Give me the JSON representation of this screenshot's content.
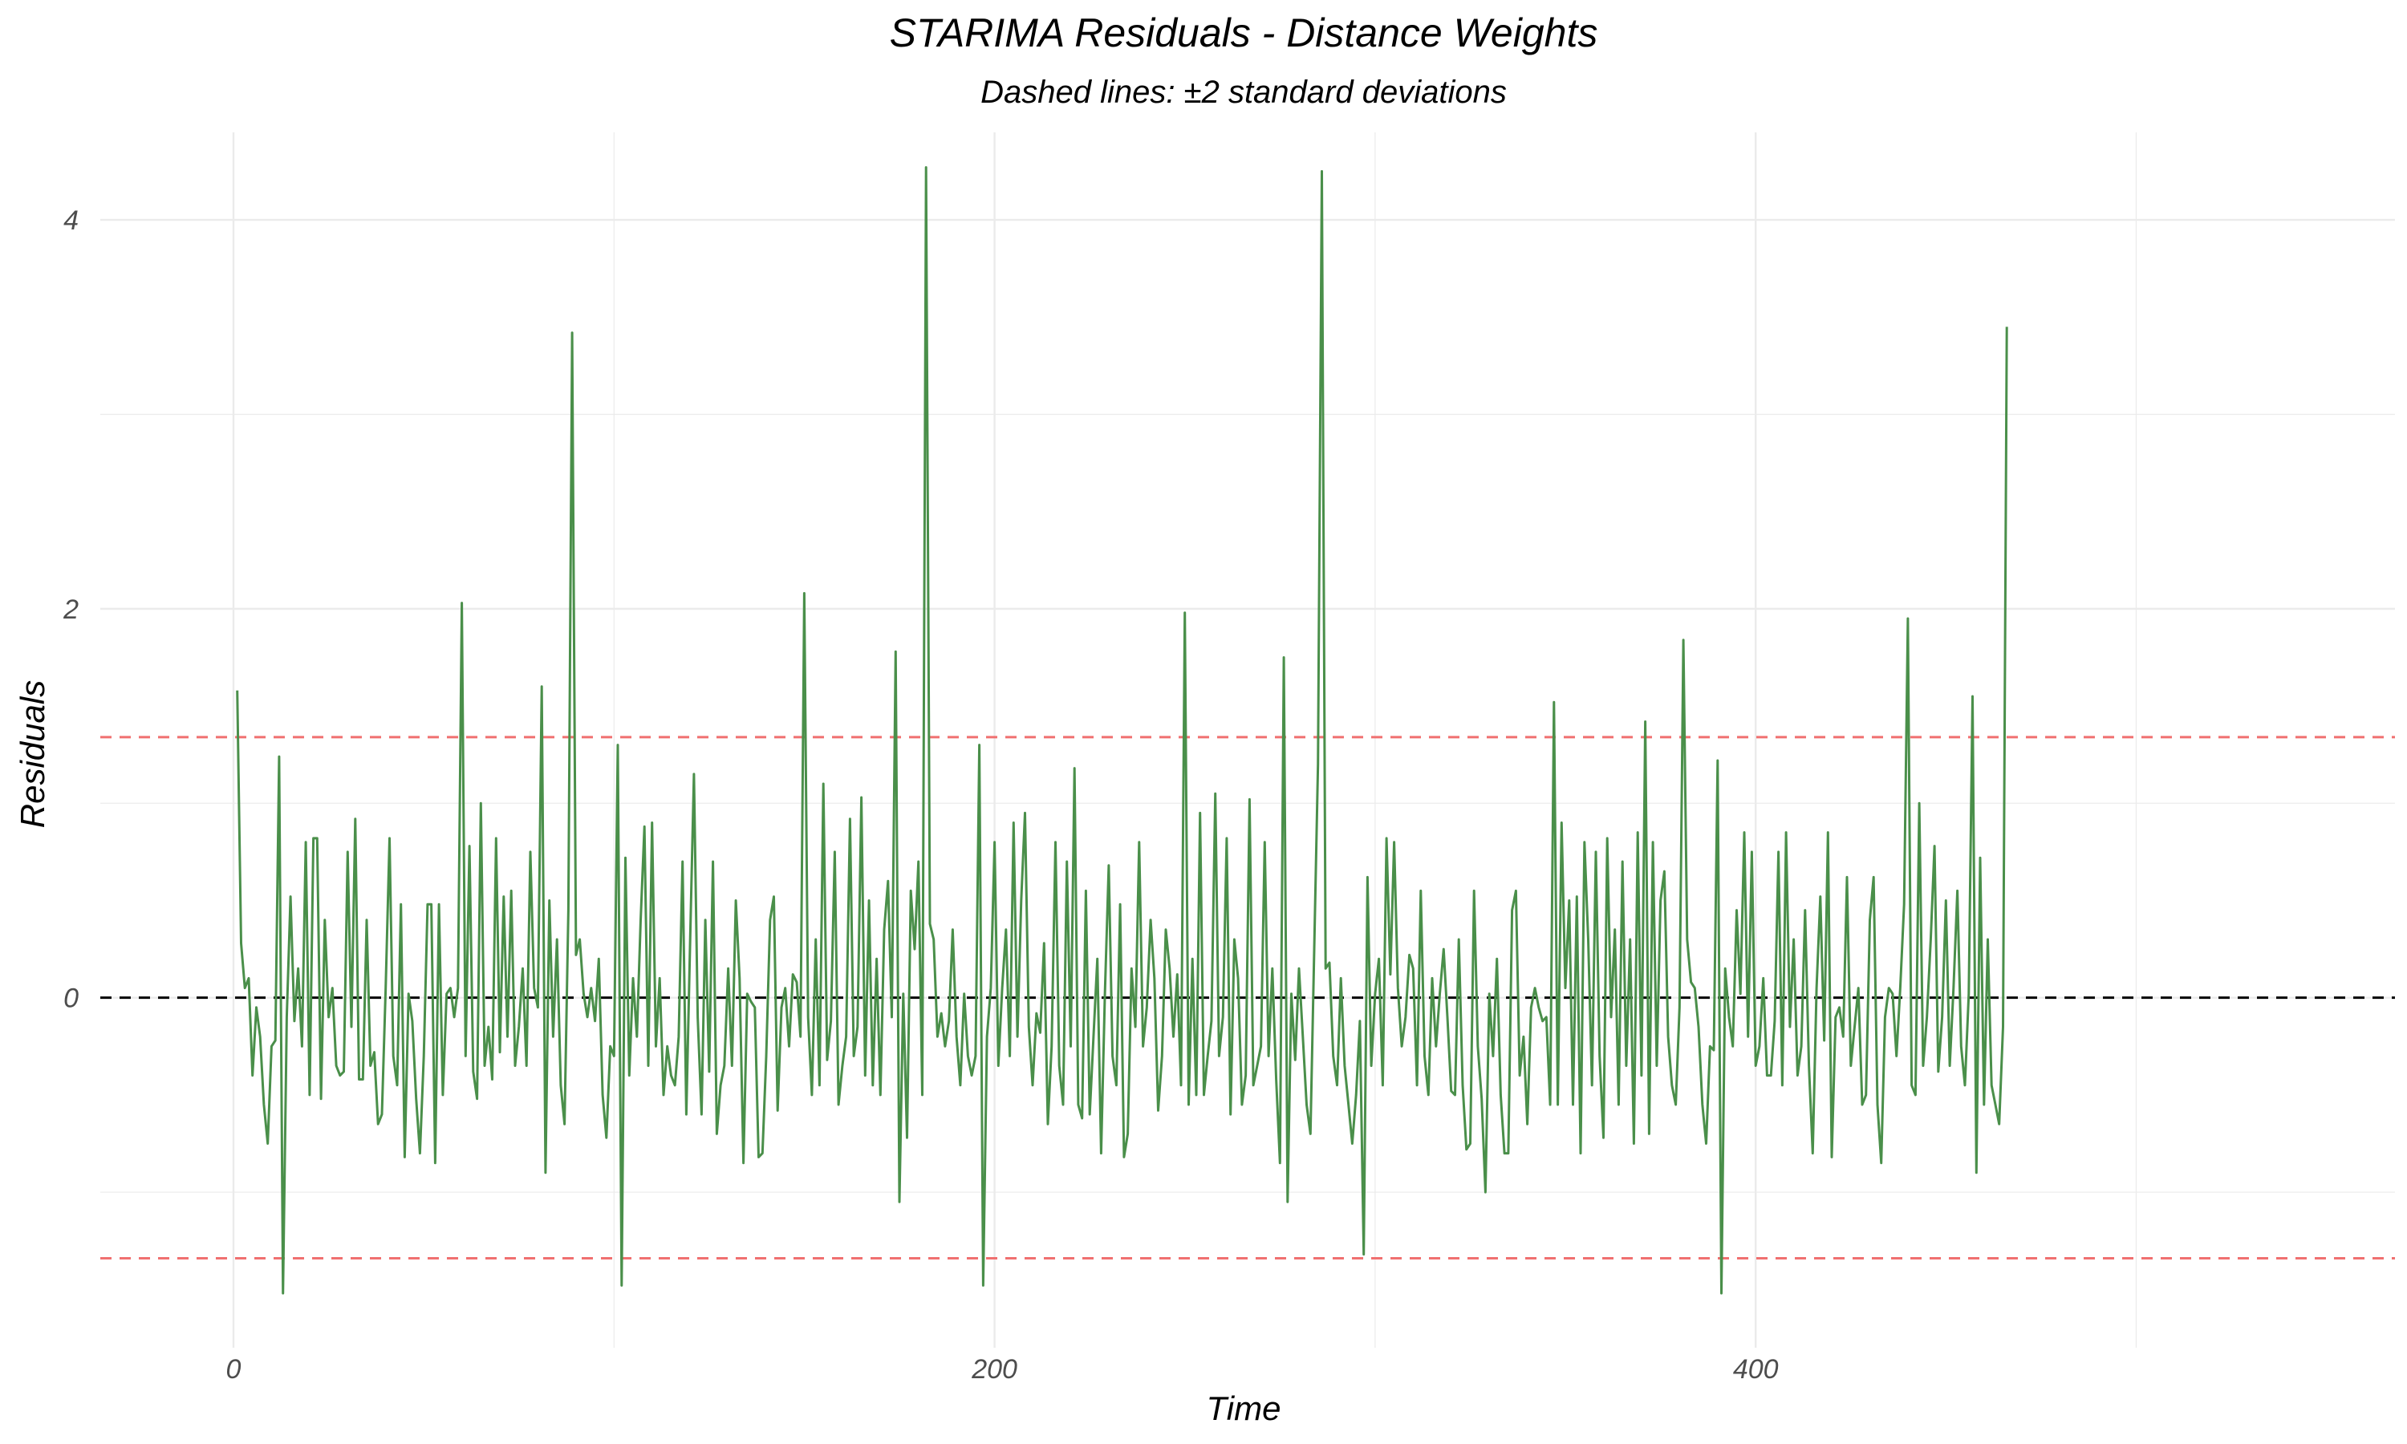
{
  "chart_data": {
    "type": "line",
    "title": "STARIMA Residuals - Distance Weights",
    "subtitle": "Dashed lines: ±2 standard deviations",
    "xlabel": "Time",
    "ylabel": "Residuals",
    "xlim": [
      -35,
      568
    ],
    "ylim": [
      -1.8,
      4.45
    ],
    "x_ticks": [
      0,
      200,
      400
    ],
    "y_ticks": [
      0,
      2,
      4
    ],
    "grid": true,
    "legend": "none",
    "colors": {
      "series": "#4a8f4a",
      "zero_line": "#000000",
      "sd_lines": "#f07070",
      "grid": "#ebebeb"
    },
    "reference_lines": [
      {
        "y": 0,
        "style": "dashed",
        "color": "#000000"
      },
      {
        "y": 1.34,
        "style": "dashed",
        "color": "#f07070"
      },
      {
        "y": -1.34,
        "style": "dashed",
        "color": "#f07070"
      }
    ],
    "x_start": 1,
    "x_step": 1,
    "values": [
      1.58,
      0.28,
      0.05,
      0.1,
      -0.4,
      -0.05,
      -0.2,
      -0.55,
      -0.75,
      -0.25,
      -0.22,
      1.24,
      -1.52,
      -0.1,
      0.52,
      -0.12,
      0.15,
      -0.25,
      0.8,
      -0.5,
      0.82,
      0.82,
      -0.52,
      0.4,
      -0.1,
      0.05,
      -0.35,
      -0.4,
      -0.38,
      0.75,
      -0.15,
      0.92,
      -0.42,
      -0.42,
      0.4,
      -0.35,
      -0.28,
      -0.65,
      -0.6,
      0.05,
      0.82,
      -0.3,
      -0.45,
      0.48,
      -0.82,
      0.02,
      -0.12,
      -0.52,
      -0.8,
      -0.3,
      0.48,
      0.48,
      -0.85,
      0.48,
      -0.5,
      0.02,
      0.05,
      -0.1,
      0.05,
      2.03,
      -0.3,
      0.78,
      -0.38,
      -0.52,
      1.0,
      -0.35,
      -0.15,
      -0.42,
      0.82,
      -0.28,
      0.52,
      -0.2,
      0.55,
      -0.35,
      -0.15,
      0.15,
      -0.35,
      0.75,
      0.05,
      -0.05,
      1.6,
      -0.9,
      0.5,
      -0.2,
      0.3,
      -0.45,
      -0.65,
      0.45,
      3.42,
      0.22,
      0.3,
      0.02,
      -0.1,
      0.05,
      -0.12,
      0.2,
      -0.5,
      -0.72,
      -0.25,
      -0.3,
      1.3,
      -1.48,
      0.72,
      -0.4,
      0.1,
      -0.2,
      0.4,
      0.88,
      -0.35,
      0.9,
      -0.25,
      0.1,
      -0.5,
      -0.25,
      -0.4,
      -0.45,
      -0.2,
      0.7,
      -0.6,
      0.3,
      1.15,
      -0.1,
      -0.6,
      0.4,
      -0.38,
      0.7,
      -0.7,
      -0.45,
      -0.35,
      0.15,
      -0.35,
      0.5,
      0.1,
      -0.85,
      0.02,
      -0.02,
      -0.05,
      -0.82,
      -0.8,
      -0.3,
      0.4,
      0.52,
      -0.58,
      -0.05,
      0.05,
      -0.25,
      0.12,
      0.08,
      -0.2,
      2.08,
      -0.1,
      -0.5,
      0.3,
      -0.45,
      1.1,
      -0.32,
      -0.12,
      0.75,
      -0.55,
      -0.35,
      -0.2,
      0.92,
      -0.3,
      -0.15,
      1.03,
      -0.4,
      0.5,
      -0.45,
      0.2,
      -0.5,
      0.35,
      0.6,
      -0.1,
      1.78,
      -1.05,
      0.02,
      -0.72,
      0.55,
      0.25,
      0.7,
      -0.5,
      4.27,
      0.38,
      0.3,
      -0.2,
      -0.08,
      -0.25,
      -0.12,
      0.35,
      -0.2,
      -0.45,
      0.02,
      -0.3,
      -0.4,
      -0.3,
      1.3,
      -1.48,
      -0.2,
      0.05,
      0.8,
      -0.35,
      0.05,
      0.35,
      -0.3,
      0.9,
      -0.2,
      0.5,
      0.95,
      -0.15,
      -0.45,
      -0.08,
      -0.18,
      0.28,
      -0.65,
      -0.25,
      0.8,
      -0.35,
      -0.55,
      0.7,
      -0.25,
      1.18,
      -0.55,
      -0.62,
      0.55,
      -0.6,
      -0.2,
      0.2,
      -0.8,
      0.02,
      0.68,
      -0.3,
      -0.45,
      0.48,
      -0.82,
      -0.7,
      0.15,
      -0.15,
      0.8,
      -0.25,
      -0.05,
      0.4,
      0.1,
      -0.58,
      -0.3,
      0.35,
      0.15,
      -0.2,
      0.12,
      -0.45,
      1.98,
      -0.55,
      0.2,
      -0.5,
      0.95,
      -0.5,
      -0.3,
      -0.12,
      1.05,
      -0.3,
      -0.1,
      0.82,
      -0.6,
      0.3,
      0.1,
      -0.55,
      -0.4,
      1.02,
      -0.45,
      -0.35,
      -0.25,
      0.8,
      -0.3,
      0.15,
      -0.42,
      -0.85,
      1.75,
      -1.05,
      0.02,
      -0.32,
      0.15,
      -0.2,
      -0.55,
      -0.7,
      0.25,
      1.2,
      4.25,
      0.15,
      0.18,
      -0.3,
      -0.45,
      0.1,
      -0.35,
      -0.55,
      -0.75,
      -0.5,
      -0.12,
      -1.32,
      0.62,
      -0.35,
      0.02,
      0.2,
      -0.45,
      0.82,
      0.12,
      0.8,
      0.05,
      -0.25,
      -0.1,
      0.22,
      0.15,
      -0.45,
      0.55,
      -0.3,
      -0.5,
      0.1,
      -0.25,
      0.02,
      0.25,
      -0.1,
      -0.48,
      -0.5,
      0.3,
      -0.45,
      -0.78,
      -0.75,
      0.55,
      -0.25,
      -0.52,
      -1.0,
      0.02,
      -0.3,
      0.2,
      -0.5,
      -0.8,
      -0.8,
      0.45,
      0.55,
      -0.4,
      -0.2,
      -0.65,
      -0.05,
      0.05,
      -0.05,
      -0.12,
      -0.1,
      -0.55,
      1.52,
      -0.55,
      0.9,
      0.05,
      0.5,
      -0.55,
      0.52,
      -0.8,
      0.8,
      0.3,
      -0.45,
      0.75,
      -0.3,
      -0.72,
      0.82,
      -0.1,
      0.35,
      -0.55,
      0.7,
      -0.35,
      0.3,
      -0.75,
      0.85,
      -0.4,
      1.42,
      -0.7,
      0.8,
      -0.35,
      0.5,
      0.65,
      -0.2,
      -0.45,
      -0.55,
      -0.05,
      1.84,
      0.3,
      0.08,
      0.05,
      -0.15,
      -0.55,
      -0.75,
      -0.25,
      -0.27,
      1.22,
      -1.52,
      0.15,
      -0.1,
      -0.25,
      0.45,
      0.02,
      0.85,
      -0.2,
      0.75,
      -0.35,
      -0.25,
      0.1,
      -0.4,
      -0.4,
      -0.12,
      0.75,
      -0.45,
      0.85,
      -0.15,
      0.3,
      -0.4,
      -0.25,
      0.45,
      -0.35,
      -0.8,
      0.05,
      0.52,
      -0.22,
      0.85,
      -0.82,
      -0.1,
      -0.05,
      -0.2,
      0.62,
      -0.35,
      -0.15,
      0.05,
      -0.55,
      -0.5,
      0.4,
      0.62,
      -0.55,
      -0.85,
      -0.1,
      0.05,
      0.02,
      -0.3,
      0.05,
      0.48,
      1.95,
      -0.45,
      -0.5,
      1.0,
      -0.35,
      -0.1,
      0.3,
      0.78,
      -0.38,
      -0.1,
      0.5,
      -0.35,
      0.05,
      0.55,
      -0.25,
      -0.45,
      0.02,
      1.55,
      -0.9,
      0.72,
      -0.55,
      0.3,
      -0.45,
      -0.55,
      -0.65,
      -0.15,
      3.45
    ]
  }
}
